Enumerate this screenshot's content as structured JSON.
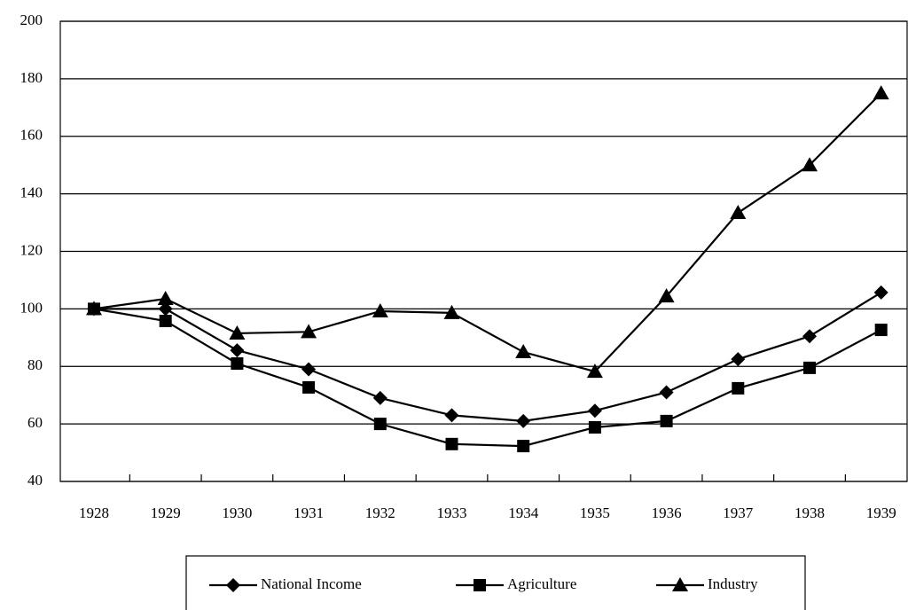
{
  "chart_data": {
    "type": "line",
    "categories": [
      "1928",
      "1929",
      "1930",
      "1931",
      "1932",
      "1933",
      "1934",
      "1935",
      "1936",
      "1937",
      "1938",
      "1939"
    ],
    "series": [
      {
        "name": "National Income",
        "color": "#000000",
        "marker": "diamond",
        "values": [
          100,
          100,
          85.6,
          79,
          69,
          63,
          61,
          64.6,
          71,
          82.5,
          90.5,
          105.7
        ]
      },
      {
        "name": "Agriculture",
        "color": "#000000",
        "marker": "square",
        "values": [
          100,
          95.8,
          81,
          72.7,
          60,
          53,
          52.3,
          58.8,
          61,
          72.4,
          79.5,
          92.7
        ]
      },
      {
        "name": "Industry",
        "color": "#000000",
        "marker": "triangle",
        "values": [
          100,
          103.5,
          91.5,
          92,
          99.2,
          98.6,
          85,
          78.2,
          104.4,
          133.4,
          150,
          175
        ]
      }
    ],
    "ylim": [
      40,
      200
    ],
    "yticks": [
      40,
      60,
      80,
      100,
      120,
      140,
      160,
      180,
      200
    ],
    "grid": true,
    "legend": "bottom"
  }
}
